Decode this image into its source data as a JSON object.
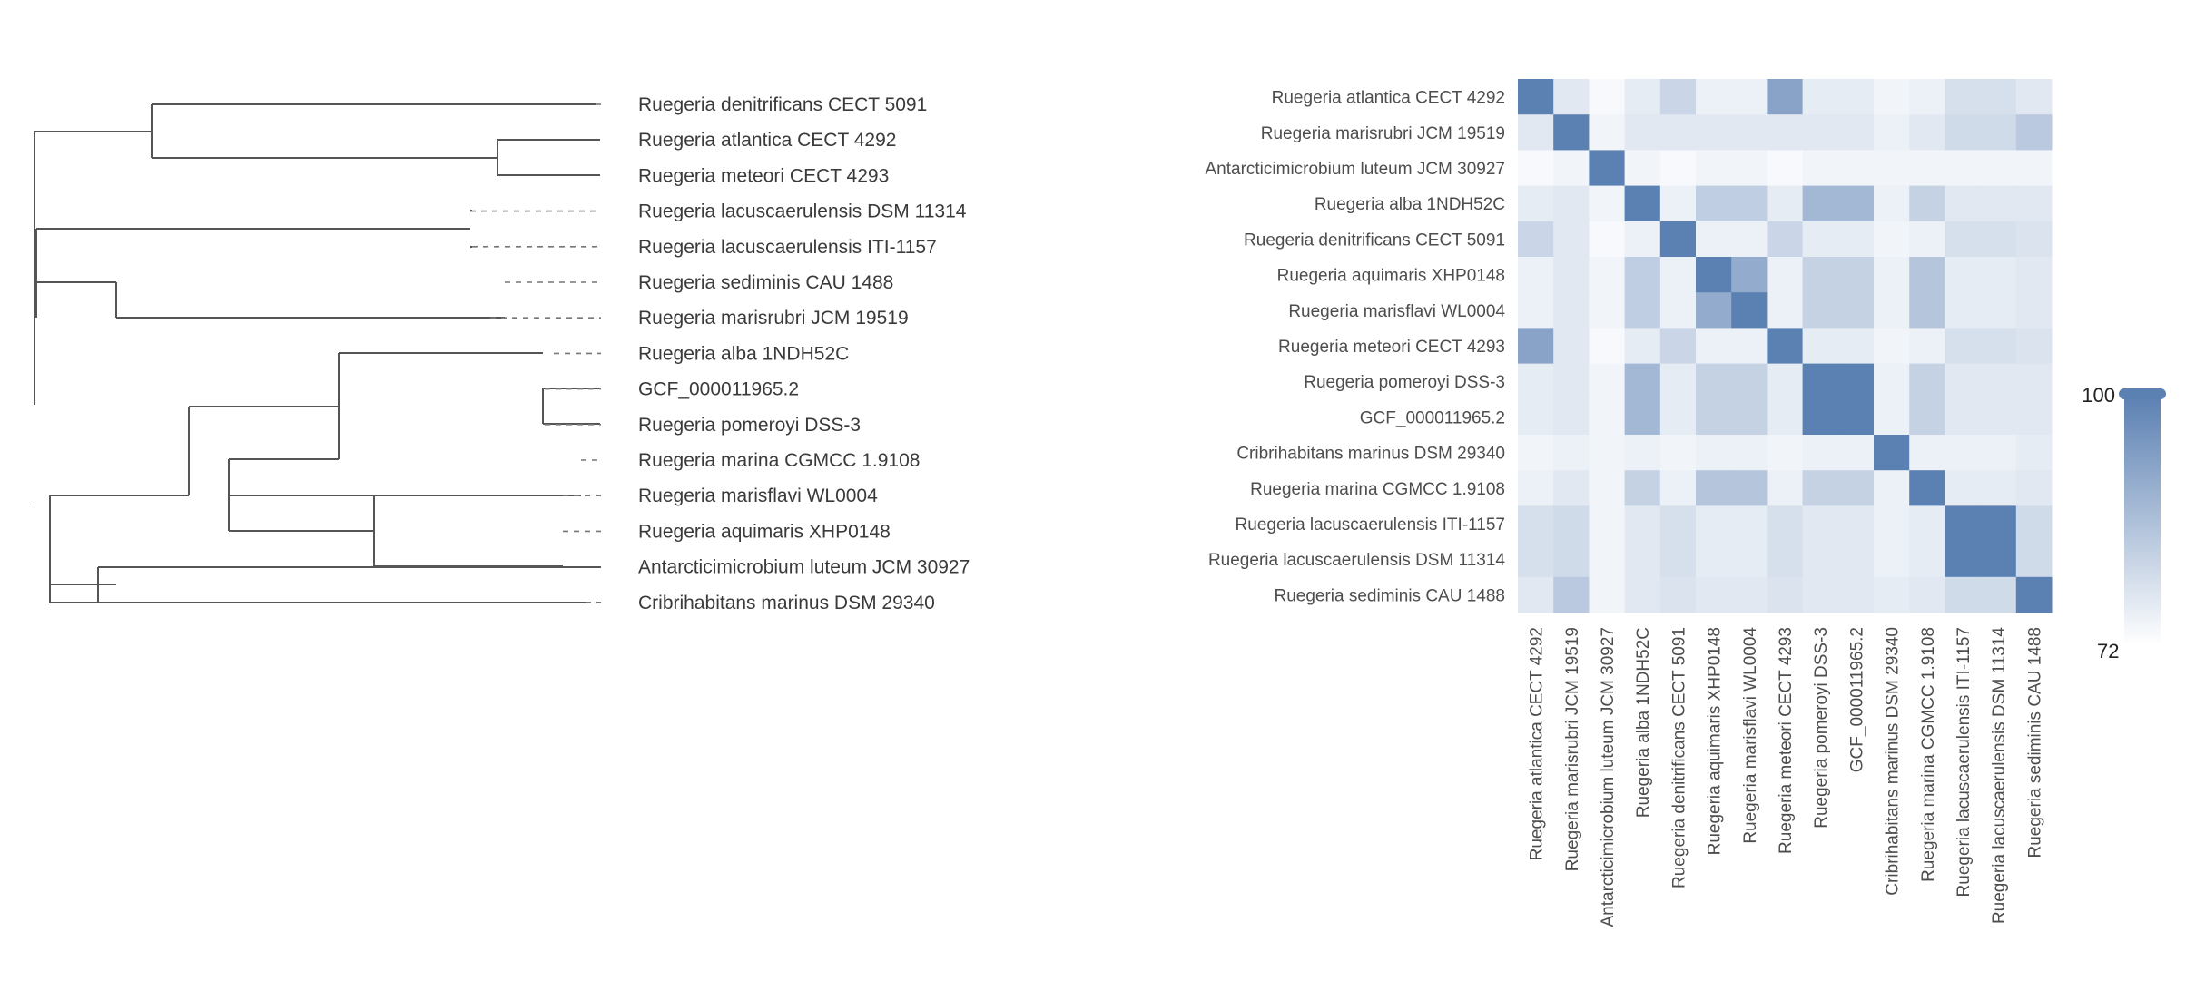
{
  "chart_data": [
    {
      "type": "dendrogram",
      "leaves": [
        "Ruegeria denitrificans CECT 5091",
        "Ruegeria atlantica CECT 4292",
        "Ruegeria meteori CECT 4293",
        "Ruegeria lacuscaerulensis DSM 11314",
        "Ruegeria lacuscaerulensis ITI-1157",
        "Ruegeria sediminis CAU 1488",
        "Ruegeria marisrubri JCM 19519",
        "Ruegeria alba 1NDH52C",
        "GCF_000011965.2",
        "Ruegeria pomeroyi DSS-3",
        "Ruegeria marina CGMCC 1.9108",
        "Ruegeria marisflavi WL0004",
        "Ruegeria aquimaris XHP0148",
        "Antarcticimicrobium luteum JCM 30927",
        "Cribrihabitans marinus DSM 29340"
      ]
    },
    {
      "type": "heatmap",
      "rows": [
        "Ruegeria atlantica CECT 4292",
        "Ruegeria marisrubri JCM 19519",
        "Antarcticimicrobium luteum JCM 30927",
        "Ruegeria alba 1NDH52C",
        "Ruegeria denitrificans CECT 5091",
        "Ruegeria aquimaris XHP0148",
        "Ruegeria marisflavi WL0004",
        "Ruegeria meteori CECT 4293",
        "Ruegeria pomeroyi DSS-3",
        "GCF_000011965.2",
        "Cribrihabitans marinus DSM 29340",
        "Ruegeria marina CGMCC 1.9108",
        "Ruegeria lacuscaerulensis ITI-1157",
        "Ruegeria lacuscaerulensis DSM 11314",
        "Ruegeria sediminis CAU 1488"
      ],
      "columns": [
        "Ruegeria atlantica CECT 4292",
        "Ruegeria marisrubri JCM 19519",
        "Antarcticimicrobium luteum JCM 30927",
        "Ruegeria alba 1NDH52C",
        "Ruegeria denitrificans CECT 5091",
        "Ruegeria aquimaris XHP0148",
        "Ruegeria marisflavi WL0004",
        "Ruegeria meteori CECT 4293",
        "Ruegeria pomeroyi DSS-3",
        "GCF_000011965.2",
        "Cribrihabitans marinus DSM 29340",
        "Ruegeria marina CGMCC 1.9108",
        "Ruegeria lacuscaerulensis ITI-1157",
        "Ruegeria lacuscaerulensis DSM 11314",
        "Ruegeria sediminis CAU 1488"
      ],
      "values": [
        [
          100,
          76,
          72,
          75,
          80,
          74,
          74,
          92,
          75,
          75,
          73,
          74,
          78,
          78,
          76
        ],
        [
          76,
          100,
          73,
          76,
          76,
          76,
          76,
          76,
          76,
          76,
          74,
          76,
          79,
          79,
          83
        ],
        [
          72,
          73,
          100,
          73,
          72,
          73,
          73,
          72,
          73,
          73,
          73,
          73,
          73,
          73,
          73
        ],
        [
          75,
          76,
          73,
          100,
          74,
          82,
          82,
          75,
          87,
          87,
          74,
          81,
          76,
          76,
          76
        ],
        [
          80,
          76,
          72,
          74,
          100,
          74,
          74,
          80,
          75,
          75,
          73,
          74,
          78,
          78,
          77
        ],
        [
          74,
          76,
          73,
          82,
          74,
          100,
          90,
          74,
          81,
          81,
          74,
          84,
          75,
          75,
          76
        ],
        [
          74,
          76,
          73,
          82,
          74,
          90,
          100,
          74,
          81,
          81,
          74,
          84,
          75,
          75,
          76
        ],
        [
          92,
          76,
          72,
          75,
          80,
          74,
          74,
          100,
          75,
          75,
          73,
          74,
          78,
          78,
          77
        ],
        [
          75,
          76,
          73,
          87,
          75,
          81,
          81,
          75,
          100,
          100,
          74,
          81,
          76,
          76,
          76
        ],
        [
          75,
          76,
          73,
          87,
          75,
          81,
          81,
          75,
          100,
          100,
          74,
          81,
          76,
          76,
          76
        ],
        [
          73,
          74,
          73,
          74,
          73,
          74,
          74,
          73,
          74,
          74,
          100,
          74,
          74,
          74,
          75
        ],
        [
          74,
          76,
          73,
          81,
          74,
          84,
          84,
          74,
          81,
          81,
          74,
          100,
          75,
          75,
          76
        ],
        [
          78,
          79,
          73,
          76,
          78,
          75,
          75,
          78,
          76,
          76,
          74,
          75,
          100,
          100,
          79
        ],
        [
          78,
          79,
          73,
          76,
          78,
          75,
          75,
          78,
          76,
          76,
          74,
          75,
          100,
          100,
          79
        ],
        [
          76,
          83,
          73,
          76,
          77,
          76,
          76,
          77,
          76,
          76,
          75,
          76,
          79,
          79,
          100
        ]
      ],
      "scale": {
        "min": 72,
        "max": 100,
        "min_label": "72",
        "max_label": "100"
      },
      "colors": {
        "low": "#f7f9fc",
        "high": "#5b80b2"
      }
    }
  ]
}
